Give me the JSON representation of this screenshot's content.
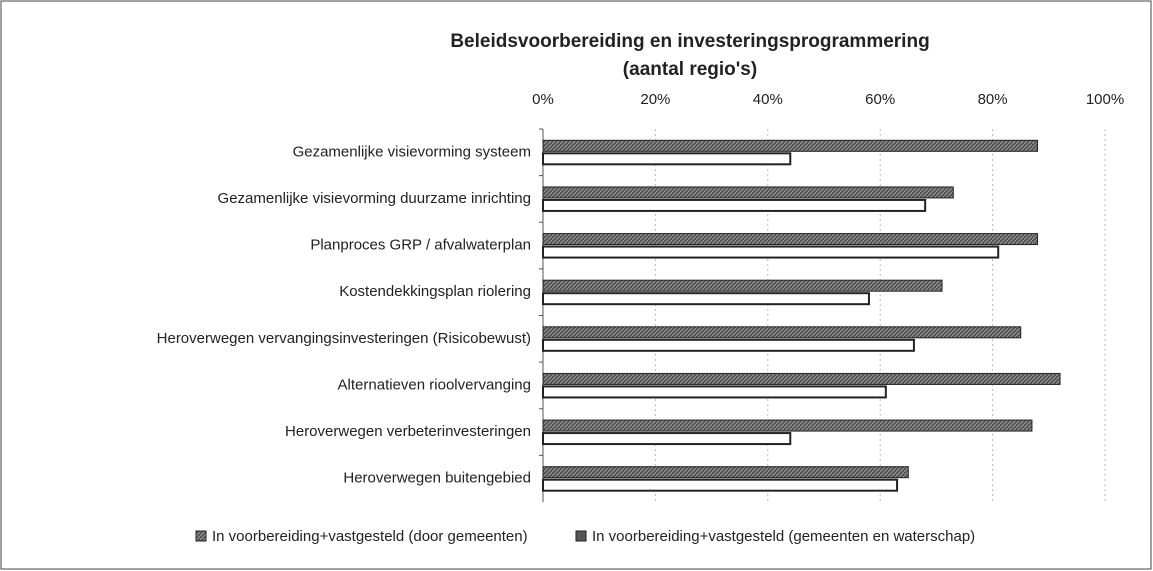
{
  "chart_data": {
    "type": "hbar",
    "title": "Beleidsvoorbereiding en investeringsprogrammering",
    "subtitle": "(aantal regio's)",
    "categories": [
      "Gezamenlijke visievorming systeem",
      "Gezamenlijke visievorming duurzame inrichting",
      "Planproces GRP / afvalwaterplan",
      "Kostendekkingsplan riolering",
      "Heroverwegen vervangingsinvesteringen (Risicobewust)",
      "Alternatieven rioolvervanging",
      "Heroverwegen verbeterinvesteringen",
      "Heroverwegen buitengebied"
    ],
    "series": [
      {
        "name": "In voorbereiding+vastgesteld (door gemeenten)",
        "color": "#555555",
        "values": [
          88,
          73,
          88,
          71,
          85,
          92,
          87,
          65
        ]
      },
      {
        "name": "In voorbereiding+vastgesteld (gemeenten en waterschap)",
        "color": "#ffffff",
        "values": [
          44,
          68,
          81,
          58,
          66,
          61,
          44,
          63
        ]
      }
    ],
    "xlim": [
      0,
      100
    ],
    "xticks": [
      {
        "value": 0,
        "label": "0%"
      },
      {
        "value": 20,
        "label": "20%"
      },
      {
        "value": 40,
        "label": "40%"
      },
      {
        "value": 60,
        "label": "60%"
      },
      {
        "value": 80,
        "label": "80%"
      },
      {
        "value": 100,
        "label": "100%"
      }
    ],
    "grid": true,
    "legend": "bottom"
  }
}
